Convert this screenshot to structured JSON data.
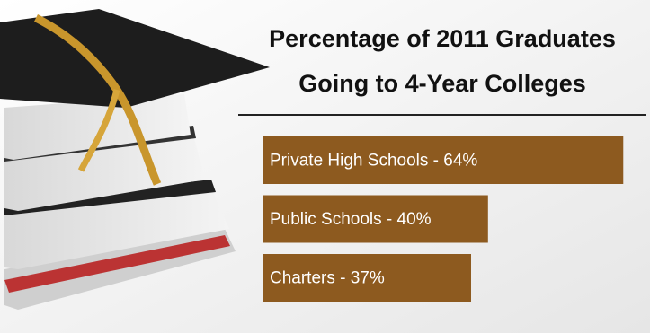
{
  "chart_data": {
    "type": "bar",
    "title": [
      "Percentage of 2011 Graduates",
      "Going to 4-Year Colleges"
    ],
    "values": [
      64,
      40,
      37
    ],
    "value_labels": [
      "Private High Schools - 64%",
      "Public Schools - 40%",
      "Charters - 37%"
    ],
    "color": "#8d5a1f"
  }
}
